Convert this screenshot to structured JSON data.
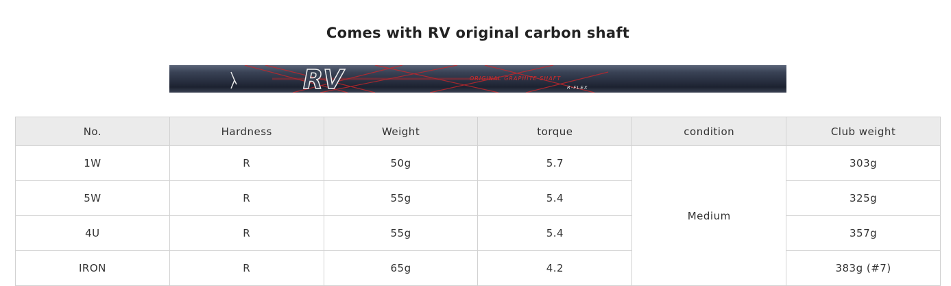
{
  "title": "Comes with RV original carbon shaft",
  "shaft_image": {
    "logo": "RV",
    "text": "ORIGINAL GRAPHITE SHAFT",
    "flex": "R-FLEX",
    "accent": "#d42a2a"
  },
  "table": {
    "headers": [
      "No.",
      "Hardness",
      "Weight",
      "torque",
      "condition",
      "Club weight"
    ],
    "condition": "Medium",
    "rows": [
      {
        "no": "1W",
        "hardness": "R",
        "weight": "50g",
        "torque": "5.7",
        "club_weight": "303g"
      },
      {
        "no": "5W",
        "hardness": "R",
        "weight": "55g",
        "torque": "5.4",
        "club_weight": "325g"
      },
      {
        "no": "4U",
        "hardness": "R",
        "weight": "55g",
        "torque": "5.4",
        "club_weight": "357g"
      },
      {
        "no": "IRON",
        "hardness": "R",
        "weight": "65g",
        "torque": "4.2",
        "club_weight": "383g (#7)"
      }
    ]
  }
}
